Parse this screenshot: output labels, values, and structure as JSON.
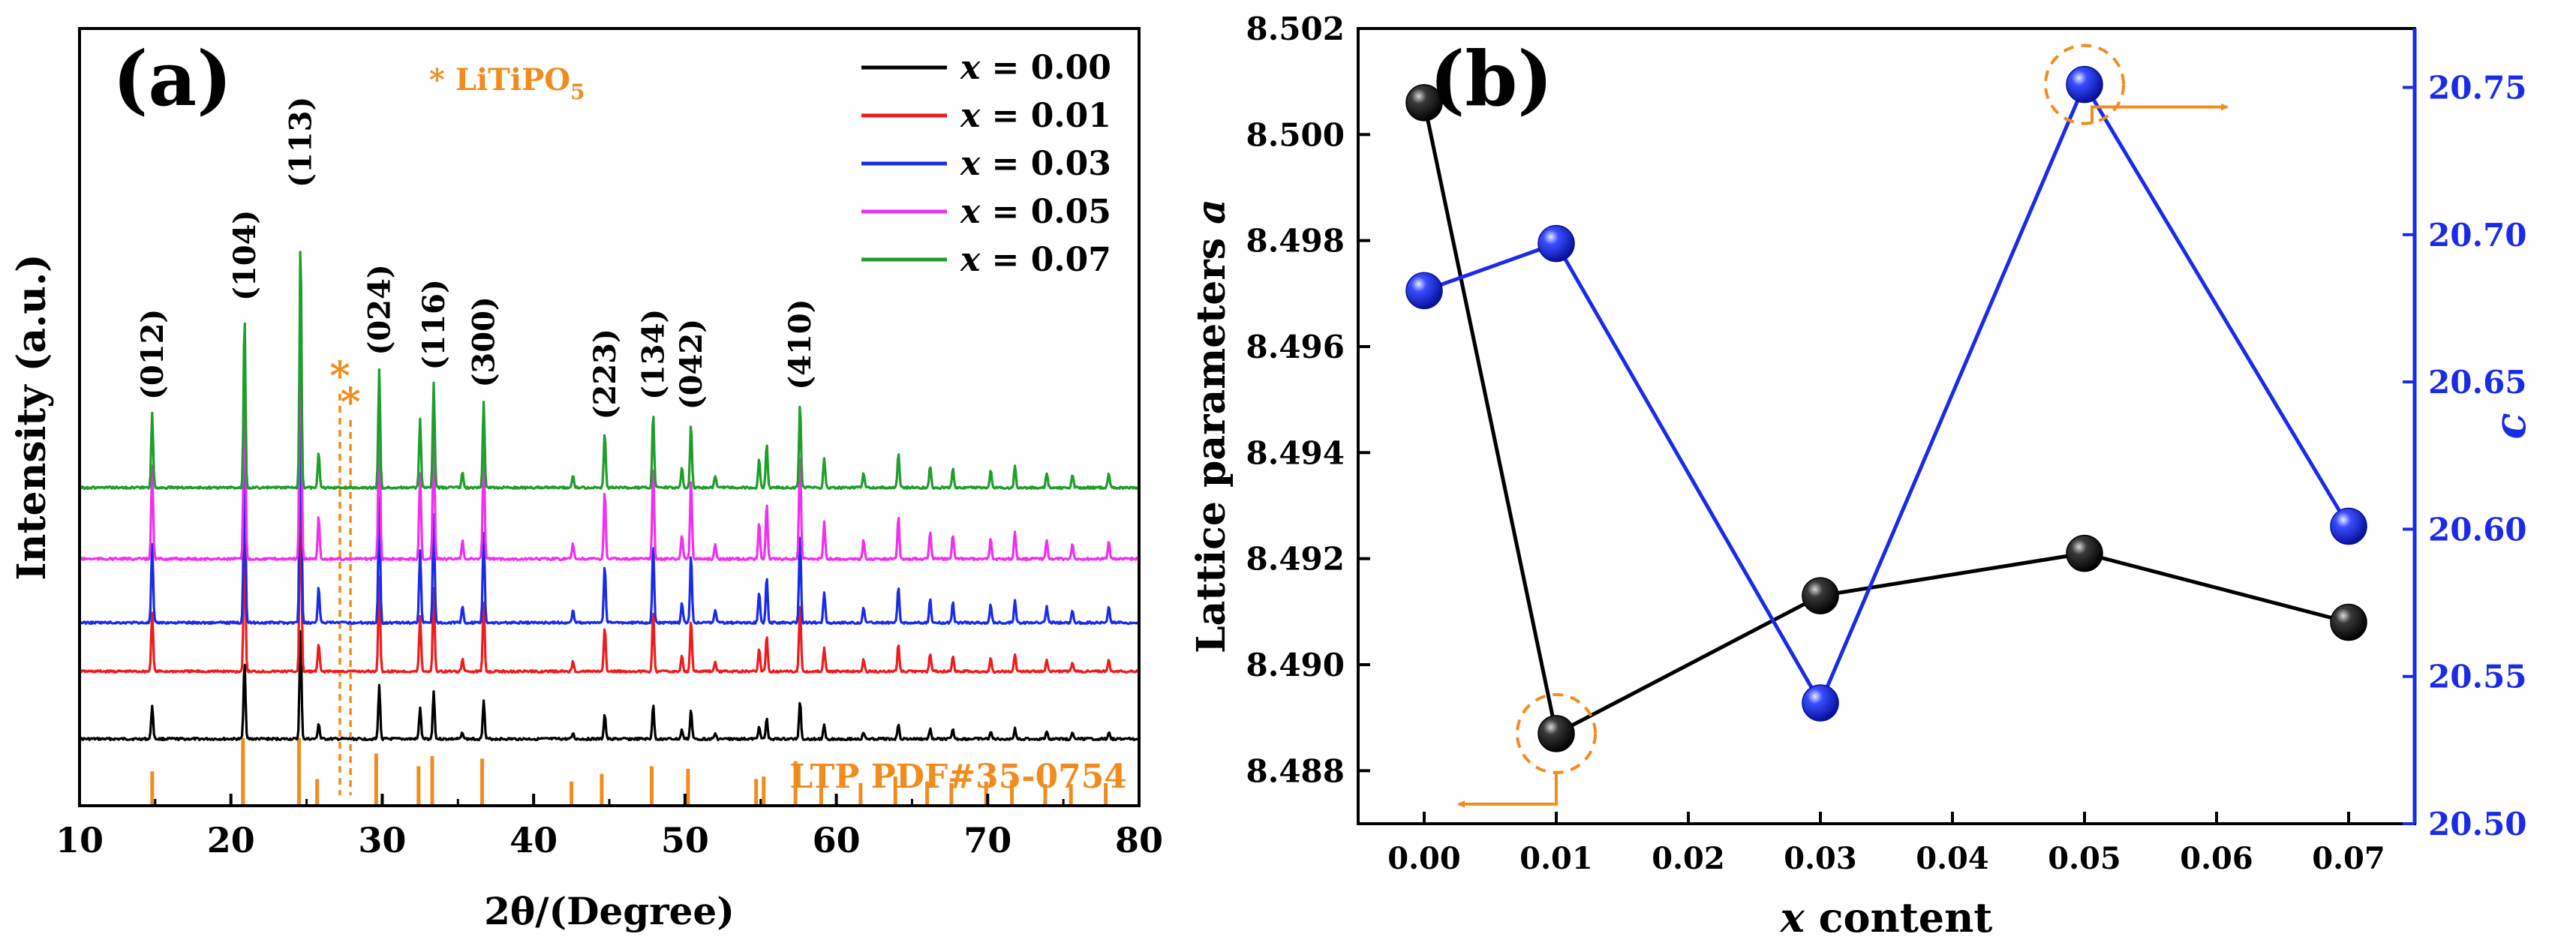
{
  "chart_data": [
    {
      "type": "line",
      "panel_label": "(a)",
      "title": "",
      "xlabel": "2θ/(Degree)",
      "ylabel": "Intensity (a.u.)",
      "xlim": [
        10,
        80
      ],
      "xticks": [
        10,
        20,
        30,
        40,
        50,
        60,
        70,
        80
      ],
      "x_var": "x",
      "legend_location": "top-right",
      "series": [
        {
          "name": "x = 0.00",
          "value": "0.00",
          "color": "#000000",
          "offset": 0
        },
        {
          "name": "x = 0.01",
          "value": "0.01",
          "color": "#ee1c1c",
          "offset": 1
        },
        {
          "name": "x = 0.03",
          "value": "0.03",
          "color": "#1a2be8",
          "offset": 2
        },
        {
          "name": "x = 0.05",
          "value": "0.05",
          "color": "#f030f0",
          "offset": 3
        },
        {
          "name": "x = 0.07",
          "value": "0.07",
          "color": "#1e9e2a",
          "offset": 4
        }
      ],
      "peaks": [
        {
          "two_theta": 14.8,
          "rel": 0.3,
          "hkl": "(012)"
        },
        {
          "two_theta": 20.9,
          "rel": 0.7,
          "hkl": "(104)"
        },
        {
          "two_theta": 24.6,
          "rel": 1.0,
          "hkl": "(113)"
        },
        {
          "two_theta": 25.8,
          "rel": 0.14,
          "hkl": ""
        },
        {
          "two_theta": 29.8,
          "rel": 0.48,
          "hkl": "(024)"
        },
        {
          "two_theta": 32.5,
          "rel": 0.28,
          "hkl": ""
        },
        {
          "two_theta": 33.4,
          "rel": 0.42,
          "hkl": "(116)"
        },
        {
          "two_theta": 35.3,
          "rel": 0.06,
          "hkl": ""
        },
        {
          "two_theta": 36.7,
          "rel": 0.35,
          "hkl": "(300)"
        },
        {
          "two_theta": 42.6,
          "rel": 0.05,
          "hkl": ""
        },
        {
          "two_theta": 44.7,
          "rel": 0.22,
          "hkl": "(223)"
        },
        {
          "two_theta": 47.9,
          "rel": 0.3,
          "hkl": "(134)"
        },
        {
          "two_theta": 49.8,
          "rel": 0.08,
          "hkl": ""
        },
        {
          "two_theta": 50.4,
          "rel": 0.26,
          "hkl": "(042)"
        },
        {
          "two_theta": 52.0,
          "rel": 0.05,
          "hkl": ""
        },
        {
          "two_theta": 54.9,
          "rel": 0.12,
          "hkl": ""
        },
        {
          "two_theta": 55.4,
          "rel": 0.18,
          "hkl": ""
        },
        {
          "two_theta": 57.6,
          "rel": 0.34,
          "hkl": "(410)"
        },
        {
          "two_theta": 59.2,
          "rel": 0.12,
          "hkl": ""
        },
        {
          "two_theta": 61.8,
          "rel": 0.06,
          "hkl": ""
        },
        {
          "two_theta": 64.1,
          "rel": 0.14,
          "hkl": ""
        },
        {
          "two_theta": 66.2,
          "rel": 0.09,
          "hkl": ""
        },
        {
          "two_theta": 67.7,
          "rel": 0.08,
          "hkl": ""
        },
        {
          "two_theta": 70.2,
          "rel": 0.07,
          "hkl": ""
        },
        {
          "two_theta": 71.8,
          "rel": 0.09,
          "hkl": ""
        },
        {
          "two_theta": 73.9,
          "rel": 0.06,
          "hkl": ""
        },
        {
          "two_theta": 75.6,
          "rel": 0.05,
          "hkl": ""
        },
        {
          "two_theta": 78.0,
          "rel": 0.06,
          "hkl": ""
        }
      ],
      "reference_pattern": {
        "label": "LTP PDF#35-0754",
        "color": "#f08c1e",
        "lines": [
          {
            "two_theta": 14.8,
            "rel": 0.35
          },
          {
            "two_theta": 20.8,
            "rel": 1.0
          },
          {
            "two_theta": 24.5,
            "rel": 1.0
          },
          {
            "two_theta": 25.7,
            "rel": 0.2
          },
          {
            "two_theta": 29.6,
            "rel": 0.7
          },
          {
            "two_theta": 32.4,
            "rel": 0.45
          },
          {
            "two_theta": 33.3,
            "rel": 0.65
          },
          {
            "two_theta": 36.6,
            "rel": 0.6
          },
          {
            "two_theta": 42.5,
            "rel": 0.15
          },
          {
            "two_theta": 44.5,
            "rel": 0.3
          },
          {
            "two_theta": 47.8,
            "rel": 0.45
          },
          {
            "two_theta": 50.2,
            "rel": 0.4
          },
          {
            "two_theta": 54.7,
            "rel": 0.2
          },
          {
            "two_theta": 55.2,
            "rel": 0.25
          },
          {
            "two_theta": 57.3,
            "rel": 0.55
          },
          {
            "two_theta": 59.0,
            "rel": 0.2
          },
          {
            "two_theta": 61.6,
            "rel": 0.12
          },
          {
            "two_theta": 63.9,
            "rel": 0.25
          },
          {
            "two_theta": 66.0,
            "rel": 0.15
          },
          {
            "two_theta": 67.6,
            "rel": 0.12
          },
          {
            "two_theta": 69.9,
            "rel": 0.15
          },
          {
            "two_theta": 71.6,
            "rel": 0.18
          },
          {
            "two_theta": 73.8,
            "rel": 0.1
          },
          {
            "two_theta": 75.5,
            "rel": 0.1
          },
          {
            "two_theta": 77.8,
            "rel": 0.12
          }
        ]
      },
      "impurity": {
        "label": "* LiTiPO",
        "label_subscript": "5",
        "marker": "*",
        "color": "#f08c1e",
        "positions": [
          27.2,
          27.9
        ]
      }
    },
    {
      "type": "line",
      "panel_label": "(b)",
      "title": "",
      "xlabel": "x content",
      "x_var": "x",
      "x_unit": " content",
      "ylabel_left": "Lattice parameters a",
      "ylabel_left_var": "a",
      "ylabel_right": "c",
      "x": [
        0.0,
        0.01,
        0.03,
        0.05,
        0.07
      ],
      "xlim": [
        -0.005,
        0.075
      ],
      "xticks": [
        "0.00",
        "0.01",
        "0.02",
        "0.03",
        "0.04",
        "0.05",
        "0.06",
        "0.07"
      ],
      "ylim_left": [
        8.487,
        8.502
      ],
      "yticks_left": [
        "8.488",
        "8.490",
        "8.492",
        "8.494",
        "8.496",
        "8.498",
        "8.500",
        "8.502"
      ],
      "ylim_right": [
        20.5,
        20.77
      ],
      "yticks_right": [
        "20.50",
        "20.55",
        "20.60",
        "20.65",
        "20.70",
        "20.75"
      ],
      "series": [
        {
          "name": "Lattice parameter a",
          "axis": "left",
          "color": "#000000",
          "marker": "sphere",
          "values": [
            8.5006,
            8.4887,
            8.4913,
            8.4921,
            8.4908
          ]
        },
        {
          "name": "Lattice parameter c",
          "axis": "right",
          "color": "#1a2be8",
          "marker": "sphere",
          "values": [
            20.681,
            20.697,
            20.541,
            20.751,
            20.601
          ]
        }
      ],
      "annotations": [
        {
          "type": "dashed-circle",
          "series": 0,
          "point": 1,
          "arrow": "left",
          "color": "#f08c1e"
        },
        {
          "type": "dashed-circle",
          "series": 1,
          "point": 3,
          "arrow": "right",
          "color": "#f08c1e"
        }
      ]
    }
  ]
}
